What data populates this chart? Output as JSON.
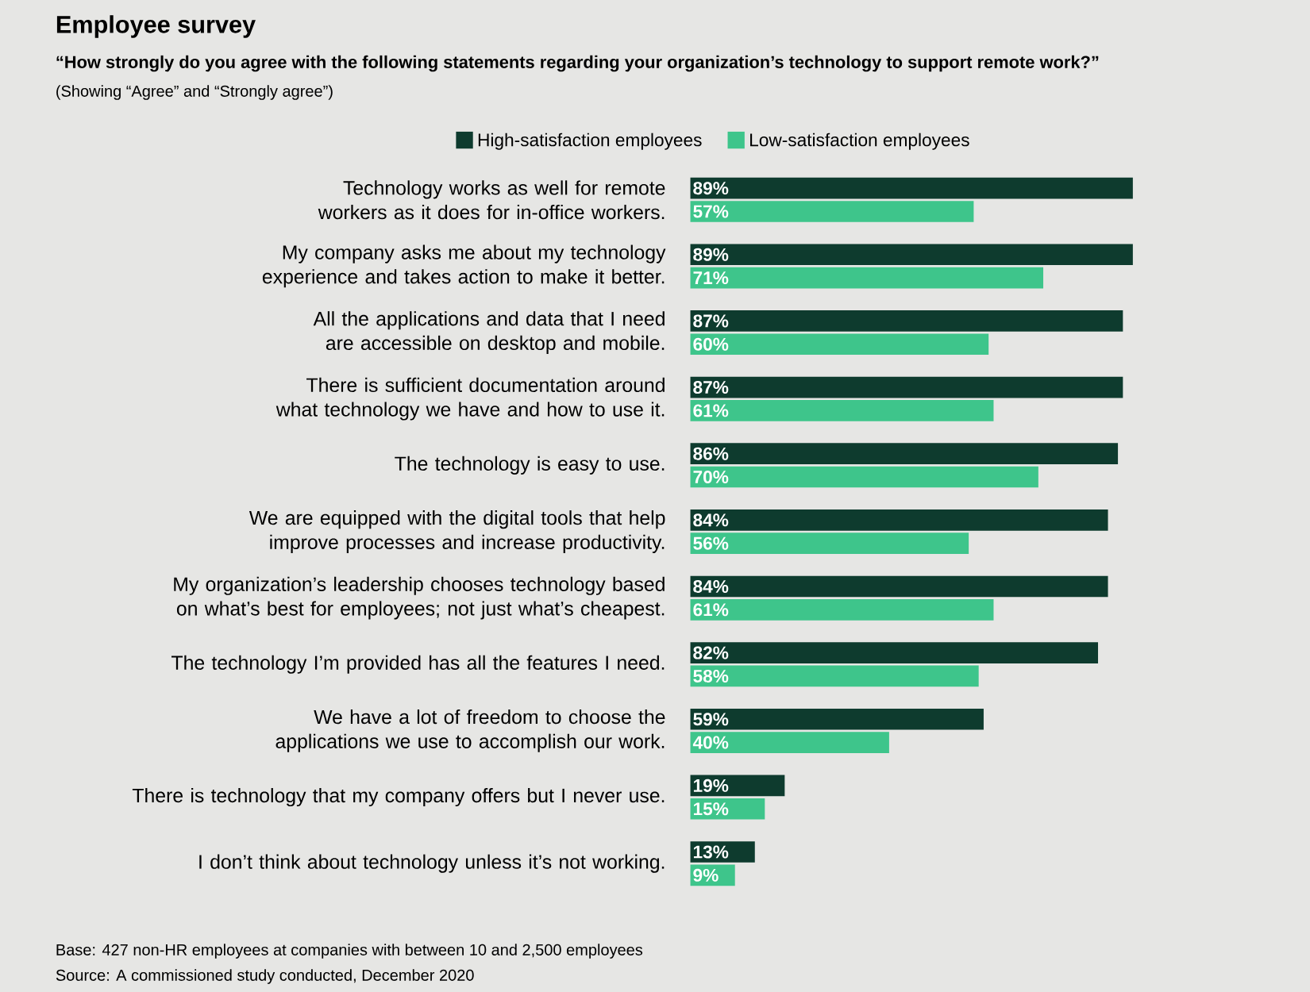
{
  "chart_data": {
    "type": "bar",
    "orientation": "horizontal",
    "title": "Employee survey",
    "subtitle": "“How strongly do you agree with the following statements regarding your organization’s technology to support remote work?”",
    "categories": [
      "Technology works as well for remote workers as it does for in-office workers.",
      "My company asks me about my technology experience and takes action to make it better.",
      "All the applications and data that I need are accessible on desktop and mobile.",
      "There is sufficient documentation around what technology we have and how to use it.",
      "The technology is easy to use.",
      "We are equipped with the digital tools that help improve processes and increase productivity.",
      "My organization’s leadership chooses technology based on what’s best for employees; not just what’s cheapest.",
      "The technology I’m provided has all the features I need.",
      "We have a lot of freedom to choose the applications we use to accomplish our work.",
      "There is technology that my company offers but I never use.",
      "I don’t think about technology unless it’s not working."
    ],
    "series": [
      {
        "name": "High-satisfaction employees",
        "color": "#0e3b2e",
        "values": [
          89,
          89,
          87,
          87,
          86,
          84,
          84,
          82,
          59,
          19,
          13
        ],
        "value_labels": [
          "89%",
          "89%",
          "87%",
          "87%",
          "86%",
          "84%",
          "84%",
          "82%",
          "59%",
          "19%",
          "13%"
        ]
      },
      {
        "name": "Low-satisfaction employees",
        "color": "#3ec58b",
        "values": [
          57,
          71,
          60,
          61,
          70,
          56,
          61,
          58,
          40,
          15,
          9
        ],
        "value_labels": [
          "57%",
          "71%",
          "60%",
          "61%",
          "70%",
          "56%",
          "61%",
          "58%",
          "40%",
          "15%",
          "9%"
        ]
      }
    ],
    "legend": "top",
    "annotations": [
      "(Showing “Agree” and “Strongly agree”)",
      "Base: 427 non-HR employees at companies with between 10 and 2,500 employees",
      "Source: A commissioned study conducted, December 2020"
    ]
  }
}
